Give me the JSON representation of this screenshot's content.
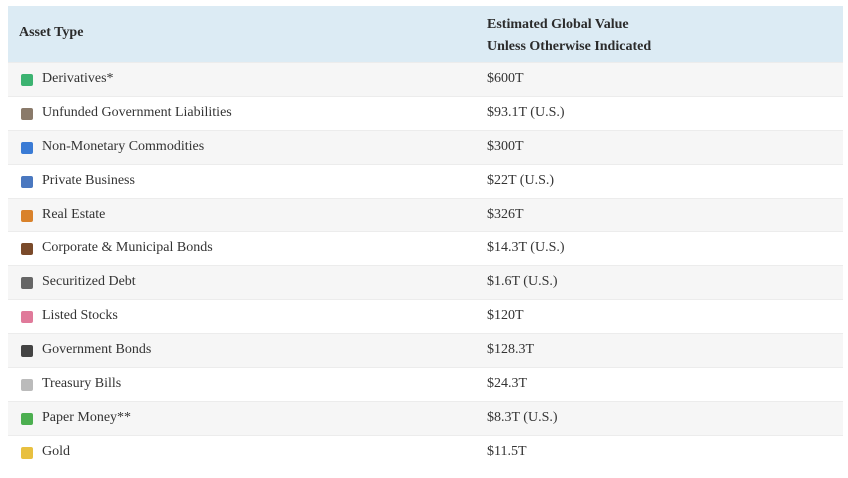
{
  "table": {
    "header": [
      "Asset Type",
      [
        "Estimated Global Value",
        "Unless Otherwise Indicated"
      ]
    ],
    "rows": [
      [
        "Derivatives*",
        "$600T"
      ],
      [
        "Unfunded Government Liabilities",
        "$93.1T (U.S.)"
      ],
      [
        "Non-Monetary Commodities",
        "$300T"
      ],
      [
        "Private Business",
        "$22T (U.S.)"
      ],
      [
        "Real Estate",
        "$326T"
      ],
      [
        "Corporate & Municipal Bonds",
        "$14.3T (U.S.)"
      ],
      [
        "Securitized Debt",
        "$1.6T (U.S.)"
      ],
      [
        "Listed Stocks",
        "$120T"
      ],
      [
        "Government Bonds",
        "$128.3T"
      ],
      [
        "Treasury Bills",
        "$24.3T"
      ],
      [
        "Paper Money**",
        "$8.3T (U.S.)"
      ],
      [
        "Gold",
        "$11.5T"
      ]
    ]
  }
}
